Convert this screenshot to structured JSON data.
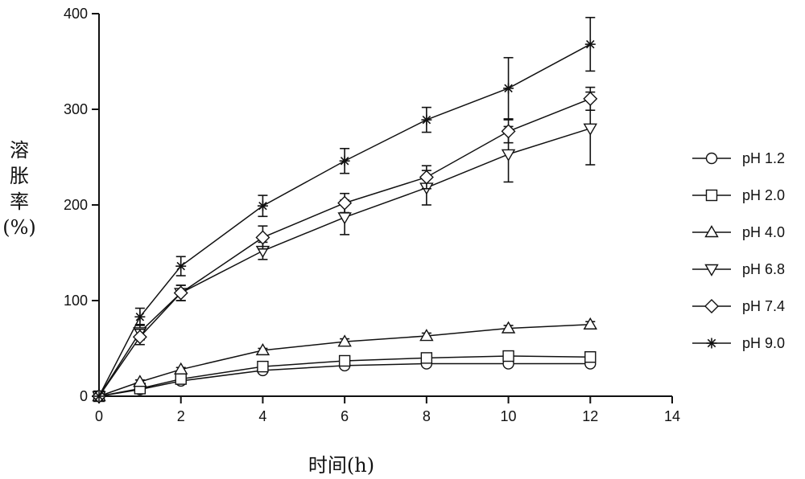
{
  "chart_data": {
    "type": "line",
    "title": "",
    "xlabel": "时间(h)",
    "ylabel_lines": [
      "溶",
      "胀",
      "率",
      "(%)"
    ],
    "xlim": [
      0,
      14
    ],
    "ylim": [
      0,
      400
    ],
    "xticks": [
      "0",
      "2",
      "4",
      "6",
      "8",
      "10",
      "12",
      "14"
    ],
    "yticks": [
      "0",
      "100",
      "200",
      "300",
      "400"
    ],
    "grid": false,
    "legend_position": "right",
    "x": [
      0,
      1,
      2,
      4,
      6,
      8,
      10,
      12
    ],
    "series": [
      {
        "name": "pH 1.2",
        "marker": "circle",
        "values": [
          0,
          7,
          16,
          27,
          32,
          34,
          34,
          34
        ],
        "errors": [
          0,
          1,
          2,
          2,
          2,
          2,
          2,
          2
        ]
      },
      {
        "name": "pH 2.0",
        "marker": "square",
        "values": [
          0,
          8,
          18,
          31,
          37,
          40,
          42,
          41
        ],
        "errors": [
          0,
          1,
          2,
          2,
          2,
          2,
          2,
          2
        ]
      },
      {
        "name": "pH 4.0",
        "marker": "triangle-up",
        "values": [
          0,
          15,
          28,
          48,
          57,
          63,
          71,
          75
        ],
        "errors": [
          0,
          2,
          2,
          2,
          3,
          3,
          3,
          3
        ]
      },
      {
        "name": "pH 6.8",
        "marker": "triangle-down",
        "values": [
          0,
          67,
          108,
          152,
          187,
          218,
          253,
          280
        ],
        "errors": [
          0,
          8,
          8,
          9,
          18,
          18,
          29,
          38
        ]
      },
      {
        "name": "pH 7.4",
        "marker": "diamond",
        "values": [
          0,
          62,
          108,
          166,
          202,
          229,
          277,
          311
        ],
        "errors": [
          0,
          8,
          8,
          12,
          10,
          12,
          12,
          12
        ]
      },
      {
        "name": "pH 9.0",
        "marker": "star",
        "values": [
          0,
          83,
          136,
          199,
          246,
          289,
          322,
          368
        ],
        "errors": [
          0,
          9,
          10,
          11,
          13,
          13,
          32,
          28
        ]
      }
    ]
  }
}
